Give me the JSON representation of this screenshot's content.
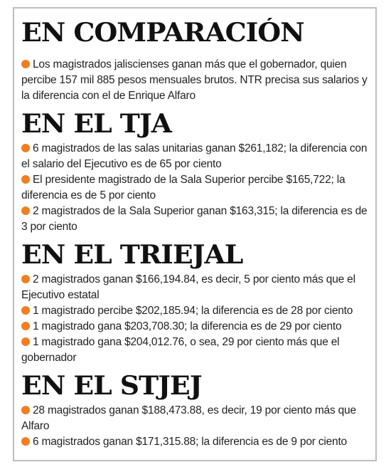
{
  "sections": [
    {
      "heading": "EN COMPARACIÓN",
      "items": [
        "Los magistrados jaliscienses ganan más que el gobernador, quien percibe 157 mil 885 pesos mensuales brutos. NTR precisa sus salarios y la diferencia con el de Enrique Alfaro"
      ]
    },
    {
      "heading": "EN EL TJA",
      "items": [
        "6 magistrados de las salas unitarias ganan $261,182; la diferencia con el salario del Ejecutivo es de 65 por ciento",
        "El presidente magistrado de la Sala Superior percibe $165,722; la diferencia es de 5 por ciento",
        "2 magistrados de la Sala Superior ganan $163,315; la diferencia es de 3 por ciento"
      ]
    },
    {
      "heading": "EN EL TRIEJAL",
      "items": [
        "2 magistrados ganan $166,194.84, es decir, 5 por ciento más que el Ejecutivo estatal",
        "1 magistrado percibe $202,185.94; la diferencia es de 28 por ciento",
        "1 magistrado gana $203,708.30; la diferencia es de 29 por ciento",
        "1 magistrado gana $204,012.76, o sea, 29 por ciento más que el gobernador"
      ]
    },
    {
      "heading": "EN EL STJEJ",
      "items": [
        "28 magistrados ganan $188,473.88, es decir, 19 por ciento más que Alfaro",
        "6 magistrados ganan $171,315.88; la diferencia es de 9 por ciento"
      ]
    }
  ]
}
